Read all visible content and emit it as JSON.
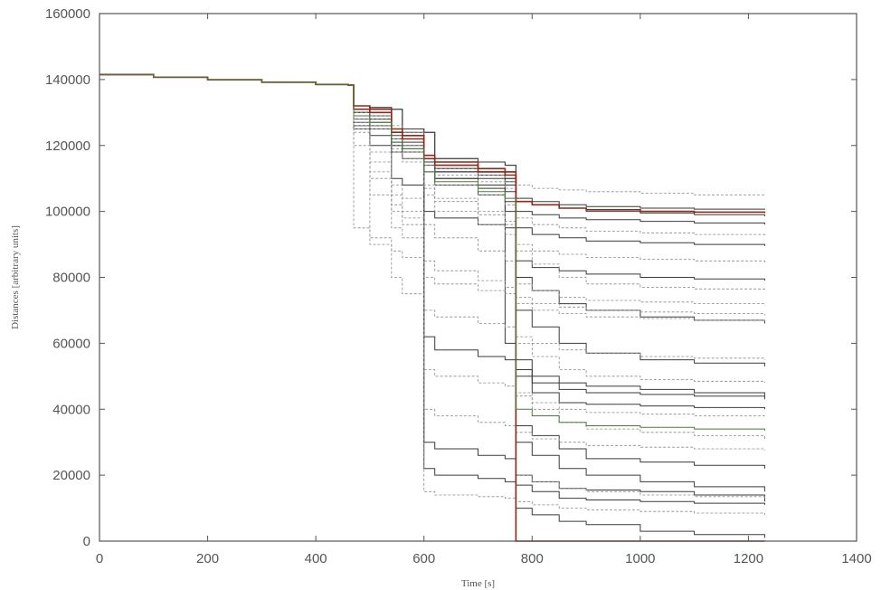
{
  "chart_data": {
    "type": "line",
    "title": "",
    "xlabel": "Time [s]",
    "ylabel": "Distances [arbitrary units]",
    "xlim": [
      0,
      1400
    ],
    "ylim": [
      0,
      160000
    ],
    "x_ticks": [
      0,
      200,
      400,
      600,
      800,
      1000,
      1200,
      1400
    ],
    "y_ticks": [
      0,
      20000,
      40000,
      60000,
      80000,
      100000,
      120000,
      140000,
      160000
    ],
    "grid": false,
    "legend": "none",
    "colors": {
      "solid": "#3a3a3a",
      "dashed": "#8a8a8a",
      "accent_red": "#8b2a1a",
      "accent_green": "#4a7a3a"
    },
    "x_sample": [
      0,
      100,
      200,
      300,
      400,
      460,
      470,
      500,
      540,
      560,
      600,
      620,
      700,
      750,
      770,
      800,
      850,
      900,
      1000,
      1100,
      1230
    ],
    "series": [
      {
        "style": "solid",
        "values": [
          141500,
          140700,
          139900,
          139200,
          138500,
          138300,
          132000,
          131500,
          131000,
          125000,
          124000,
          116000,
          115000,
          114000,
          104000,
          103000,
          102000,
          101500,
          101000,
          100700,
          100500
        ]
      },
      {
        "style": "solid",
        "values": [
          141500,
          140700,
          139900,
          139200,
          138500,
          138300,
          132000,
          131500,
          131000,
          125000,
          124000,
          116000,
          115000,
          114000,
          0,
          0,
          0,
          0,
          0,
          0,
          0
        ]
      },
      {
        "style": "solid",
        "values": [
          141500,
          140700,
          139900,
          139200,
          138500,
          138300,
          130000,
          129000,
          120000,
          118000,
          62000,
          58000,
          56000,
          55000,
          52000,
          45000,
          42000,
          41500,
          41000,
          40500,
          40000
        ]
      },
      {
        "style": "solid",
        "values": [
          141500,
          140700,
          139900,
          139200,
          138500,
          138300,
          128000,
          127000,
          122000,
          120000,
          30000,
          28000,
          26000,
          25000,
          20000,
          18000,
          16000,
          15500,
          15000,
          14000,
          12000
        ]
      },
      {
        "style": "solid",
        "values": [
          141500,
          140700,
          139900,
          139200,
          138500,
          138300,
          132000,
          131000,
          125000,
          124000,
          116000,
          112000,
          111000,
          110000,
          95000,
          93000,
          92000,
          91000,
          90500,
          90000,
          89500
        ]
      },
      {
        "style": "solid",
        "values": [
          141500,
          140700,
          139900,
          139200,
          138500,
          138300,
          131000,
          130000,
          124000,
          123000,
          115000,
          110000,
          108000,
          106000,
          80000,
          76000,
          72000,
          70000,
          68000,
          67000,
          66000
        ]
      },
      {
        "style": "solid",
        "values": [
          141500,
          140700,
          139900,
          139200,
          138500,
          138300,
          127000,
          126000,
          121000,
          119000,
          115000,
          112000,
          108000,
          60000,
          55000,
          50000,
          48000,
          47000,
          46000,
          45000,
          44000
        ]
      },
      {
        "style": "solid",
        "values": [
          141500,
          140700,
          139900,
          139200,
          138500,
          138300,
          125000,
          120000,
          110000,
          108000,
          100000,
          98000,
          96000,
          95000,
          35000,
          32000,
          28000,
          25000,
          24000,
          23000,
          22000
        ]
      },
      {
        "style": "solid",
        "values": [
          141500,
          140700,
          139900,
          139200,
          138500,
          138300,
          132000,
          131000,
          125000,
          123000,
          115000,
          113000,
          112000,
          110000,
          10000,
          8000,
          6000,
          5000,
          3000,
          2000,
          1000
        ]
      },
      {
        "style": "solid",
        "values": [
          141500,
          140700,
          139900,
          139200,
          138500,
          138300,
          130000,
          128000,
          123000,
          121000,
          114000,
          110000,
          107000,
          103000,
          100000,
          99000,
          98000,
          97500,
          97000,
          96500,
          96000
        ]
      },
      {
        "style": "solid",
        "values": [
          141500,
          140700,
          139900,
          139200,
          138500,
          138300,
          129000,
          125000,
          120000,
          118000,
          112000,
          108000,
          105000,
          100000,
          85000,
          83000,
          82000,
          81000,
          80000,
          79500,
          79000
        ]
      },
      {
        "style": "solid",
        "values": [
          141500,
          140700,
          139900,
          139200,
          138500,
          138300,
          131000,
          129000,
          124000,
          122000,
          116000,
          112000,
          110000,
          108000,
          50000,
          48000,
          46000,
          45000,
          44500,
          44000,
          43000
        ]
      },
      {
        "style": "solid",
        "values": [
          141500,
          140700,
          139900,
          139200,
          138500,
          138300,
          126000,
          123000,
          118000,
          116000,
          22000,
          20000,
          19000,
          18000,
          17000,
          15000,
          13000,
          12500,
          12000,
          11500,
          11000
        ]
      },
      {
        "style": "solid",
        "values": [
          141500,
          140700,
          139900,
          139200,
          138500,
          138300,
          132000,
          130000,
          125000,
          123000,
          117000,
          115000,
          113000,
          112000,
          70000,
          65000,
          60000,
          57000,
          55000,
          54000,
          53000
        ]
      },
      {
        "style": "solid",
        "values": [
          141500,
          140700,
          139900,
          139200,
          138500,
          138300,
          130000,
          128000,
          124000,
          122000,
          115000,
          113000,
          111000,
          109000,
          30000,
          26000,
          22000,
          20000,
          18000,
          16500,
          15000
        ]
      },
      {
        "style": "solid",
        "values": [
          141500,
          140700,
          139900,
          139200,
          138500,
          138300,
          131000,
          129000,
          125000,
          123000,
          116000,
          114000,
          112000,
          111000,
          103000,
          102000,
          101000,
          100000,
          99500,
          99000,
          98500
        ]
      },
      {
        "style": "dashed",
        "values": [
          141500,
          140700,
          139900,
          139200,
          138500,
          138300,
          128000,
          90000,
          80000,
          75000,
          70000,
          68000,
          66000,
          65000,
          62000,
          60000,
          58000,
          57000,
          56000,
          55500,
          55000
        ]
      },
      {
        "style": "dashed",
        "values": [
          141500,
          140700,
          139900,
          139200,
          138500,
          138300,
          95000,
          92000,
          88000,
          86000,
          80000,
          78000,
          76000,
          75000,
          72000,
          70000,
          69000,
          68000,
          67500,
          67000,
          66500
        ]
      },
      {
        "style": "dashed",
        "values": [
          141500,
          140700,
          139900,
          139200,
          138500,
          138300,
          132000,
          131000,
          126000,
          124000,
          117000,
          115000,
          113000,
          112000,
          108000,
          107000,
          106500,
          106000,
          105500,
          105000,
          104500
        ]
      },
      {
        "style": "dashed",
        "values": [
          141500,
          140700,
          139900,
          139200,
          138500,
          138300,
          125000,
          110000,
          100000,
          96000,
          40000,
          38000,
          36000,
          35000,
          33000,
          31000,
          30000,
          29000,
          28500,
          28000,
          27500
        ]
      },
      {
        "style": "dashed",
        "values": [
          141500,
          140700,
          139900,
          139200,
          138500,
          138300,
          120000,
          105000,
          95000,
          92000,
          85000,
          82000,
          79000,
          77000,
          74000,
          72000,
          71000,
          70000,
          69500,
          69000,
          68500
        ]
      },
      {
        "style": "dashed",
        "values": [
          141500,
          140700,
          139900,
          139200,
          138500,
          138300,
          130000,
          127000,
          120000,
          118000,
          108000,
          104000,
          100000,
          97000,
          45000,
          40000,
          36000,
          34000,
          33000,
          32000,
          31000
        ]
      },
      {
        "style": "dashed",
        "values": [
          141500,
          140700,
          139900,
          139200,
          138500,
          138300,
          131000,
          128000,
          122000,
          120000,
          112000,
          108000,
          105000,
          102000,
          60000,
          56000,
          52000,
          50000,
          49000,
          48500,
          48000
        ]
      },
      {
        "style": "dashed",
        "values": [
          141500,
          140700,
          139900,
          139200,
          138500,
          138300,
          127000,
          118000,
          108000,
          104000,
          96000,
          92000,
          88000,
          85000,
          78000,
          76000,
          74000,
          73000,
          72500,
          72000,
          71500
        ]
      },
      {
        "style": "dashed",
        "values": [
          141500,
          140700,
          139900,
          139200,
          138500,
          138300,
          132000,
          130000,
          125000,
          123000,
          116000,
          113000,
          111000,
          109000,
          90000,
          88000,
          87000,
          86000,
          85500,
          85000,
          84500
        ]
      },
      {
        "style": "dashed",
        "values": [
          141500,
          140700,
          139900,
          139200,
          138500,
          138300,
          124000,
          112000,
          102000,
          98000,
          15000,
          14000,
          13500,
          13000,
          12000,
          11000,
          10000,
          9500,
          9000,
          8500,
          8000
        ]
      },
      {
        "style": "dashed",
        "values": [
          141500,
          140700,
          139900,
          139200,
          138500,
          138300,
          129000,
          125000,
          118000,
          115000,
          105000,
          100000,
          96000,
          93000,
          20000,
          18000,
          16000,
          15000,
          14000,
          13500,
          13000
        ]
      },
      {
        "style": "dashed",
        "values": [
          141500,
          140700,
          139900,
          139200,
          138500,
          138300,
          131000,
          129000,
          124000,
          122000,
          114000,
          111000,
          109000,
          107000,
          98000,
          96000,
          95000,
          94000,
          93500,
          93000,
          92500
        ]
      },
      {
        "style": "dashed",
        "values": [
          141500,
          140700,
          139900,
          139200,
          138500,
          138300,
          126000,
          115000,
          105000,
          100000,
          52000,
          50000,
          48000,
          47000,
          44000,
          42000,
          40000,
          39000,
          38500,
          38000,
          37500
        ]
      },
      {
        "style": "dashed",
        "values": [
          141500,
          140700,
          139900,
          139200,
          138500,
          138300,
          130000,
          126000,
          119000,
          116000,
          107000,
          103000,
          99000,
          96000,
          88000,
          84000,
          80000,
          78000,
          77000,
          76500,
          76000
        ]
      },
      {
        "style": "red",
        "values": [
          141500,
          140700,
          139900,
          139200,
          138500,
          138300,
          131000,
          130000,
          124000,
          122000,
          116000,
          114000,
          112000,
          111000,
          103000,
          102000,
          101000,
          100500,
          100000,
          99800,
          99500
        ]
      },
      {
        "style": "red",
        "values": [
          141500,
          140700,
          139900,
          139200,
          138500,
          138300,
          132000,
          131000,
          125000,
          123000,
          117000,
          115000,
          113000,
          112000,
          0,
          0,
          0,
          0,
          0,
          0,
          0
        ]
      },
      {
        "style": "green",
        "values": [
          141500,
          140700,
          139900,
          139200,
          138500,
          138300,
          129000,
          127000,
          121000,
          119000,
          112000,
          109000,
          106000,
          104000,
          40000,
          38000,
          36000,
          35000,
          34500,
          34000,
          33500
        ]
      }
    ]
  }
}
